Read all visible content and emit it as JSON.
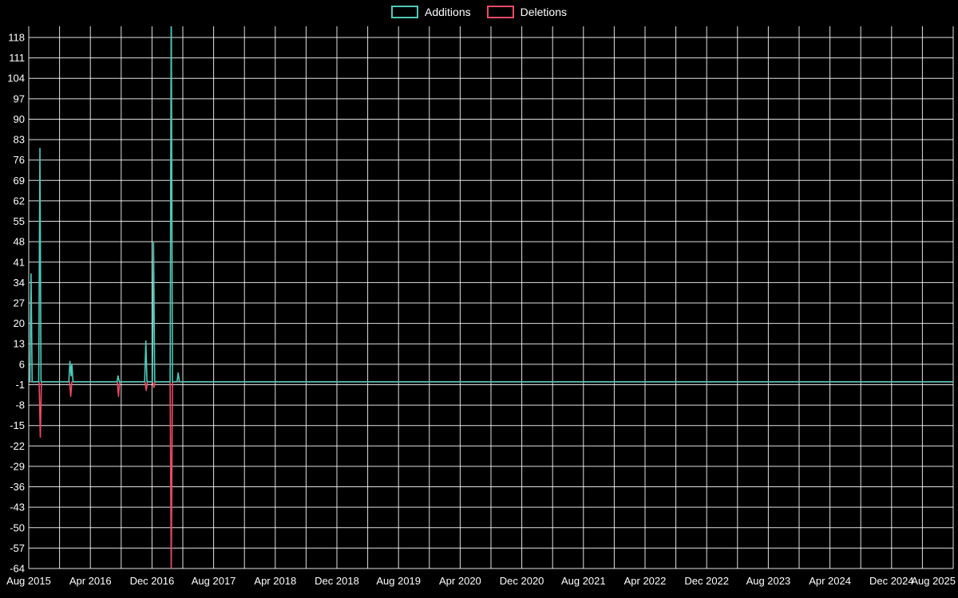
{
  "legend": {
    "items": [
      {
        "label": "Additions",
        "color": "#4ec9b8"
      },
      {
        "label": "Deletions",
        "color": "#ed4a67"
      }
    ]
  },
  "chart_data": {
    "type": "line",
    "title": "",
    "xlabel": "",
    "ylabel": "",
    "legend_position": "top-center",
    "grid": true,
    "colors": {
      "background": "#000000",
      "grid": "#ffffff",
      "text": "#ffffff"
    },
    "x_axis": {
      "unit": "months since Aug 2015",
      "total_months": 120,
      "minor_grid_every_months": 4,
      "tick_month_offsets": [
        0,
        8,
        16,
        24,
        32,
        40,
        48,
        56,
        64,
        72,
        80,
        88,
        96,
        104,
        112,
        120
      ],
      "tick_labels": [
        "Aug 2015",
        "Apr 2016",
        "Dec 2016",
        "Aug 2017",
        "Apr 2018",
        "Dec 2018",
        "Aug 2019",
        "Apr 2020",
        "Dec 2020",
        "Aug 2021",
        "Apr 2022",
        "Dec 2022",
        "Aug 2023",
        "Apr 2024",
        "Dec 2024",
        "Aug 2025"
      ]
    },
    "y_axis": {
      "ticks": [
        118,
        111,
        104,
        97,
        90,
        83,
        76,
        69,
        62,
        55,
        48,
        41,
        34,
        27,
        20,
        13,
        6,
        -1,
        -8,
        -15,
        -22,
        -29,
        -36,
        -43,
        -50,
        -57,
        -64
      ],
      "min": -64,
      "max": 122
    },
    "series": [
      {
        "name": "Additions",
        "color": "#4ec9b8",
        "points": [
          [
            0,
            0
          ],
          [
            0.15,
            0
          ],
          [
            0.3,
            37
          ],
          [
            0.45,
            0
          ],
          [
            1.3,
            0
          ],
          [
            1.45,
            80
          ],
          [
            1.6,
            0
          ],
          [
            5.2,
            0
          ],
          [
            5.35,
            7
          ],
          [
            5.5,
            2
          ],
          [
            5.6,
            6
          ],
          [
            5.75,
            0
          ],
          [
            11.45,
            0
          ],
          [
            11.6,
            2
          ],
          [
            11.75,
            0
          ],
          [
            15.05,
            0
          ],
          [
            15.2,
            14
          ],
          [
            15.35,
            0
          ],
          [
            16.05,
            0
          ],
          [
            16.2,
            48
          ],
          [
            16.35,
            0
          ],
          [
            18.35,
            0
          ],
          [
            18.5,
            130
          ],
          [
            18.65,
            0
          ],
          [
            19.25,
            0
          ],
          [
            19.4,
            3
          ],
          [
            19.55,
            0
          ],
          [
            120,
            0
          ]
        ],
        "note": "Peak near Feb 2017 is clipped by the top of the plot (value above 122)."
      },
      {
        "name": "Deletions",
        "color": "#ed4a67",
        "points": [
          [
            0,
            0
          ],
          [
            1.35,
            0
          ],
          [
            1.5,
            -19
          ],
          [
            1.65,
            0
          ],
          [
            5.3,
            0
          ],
          [
            5.45,
            -5
          ],
          [
            5.6,
            0
          ],
          [
            11.5,
            0
          ],
          [
            11.65,
            -5
          ],
          [
            11.8,
            0
          ],
          [
            15.1,
            0
          ],
          [
            15.25,
            -3
          ],
          [
            15.4,
            0
          ],
          [
            16.1,
            0
          ],
          [
            16.25,
            -2
          ],
          [
            16.4,
            0
          ],
          [
            18.35,
            0
          ],
          [
            18.5,
            -64
          ],
          [
            18.65,
            0
          ],
          [
            120,
            0
          ]
        ]
      }
    ]
  }
}
